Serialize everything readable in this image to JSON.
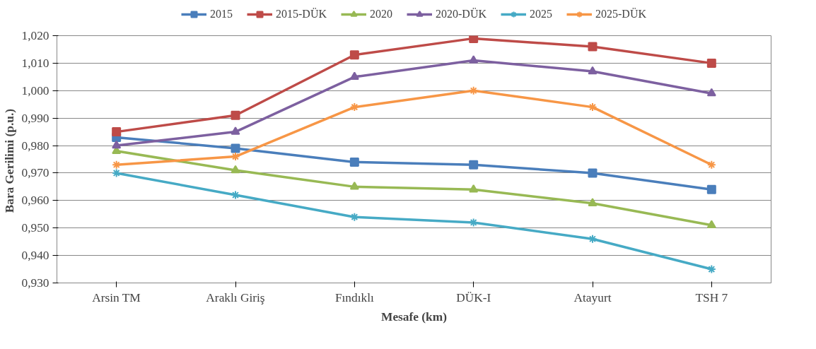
{
  "chart_data": {
    "type": "line",
    "xlabel": "Mesafe (km)",
    "ylabel": "Bara  Gerilimi (p.u.)",
    "categories": [
      "Arsin TM",
      "Araklı Giriş",
      "Fındıklı",
      "DÜK-I",
      "Atayurt",
      "TSH 7"
    ],
    "ylim": [
      0.93,
      1.02
    ],
    "yticks": [
      {
        "value": 0.93,
        "label": "0,930"
      },
      {
        "value": 0.94,
        "label": "0,940"
      },
      {
        "value": 0.95,
        "label": "0,950"
      },
      {
        "value": 0.96,
        "label": "0,960"
      },
      {
        "value": 0.97,
        "label": "0,970"
      },
      {
        "value": 0.98,
        "label": "0,980"
      },
      {
        "value": 0.99,
        "label": "0,990"
      },
      {
        "value": 1.0,
        "label": "1,000"
      },
      {
        "value": 1.01,
        "label": "1,010"
      },
      {
        "value": 1.02,
        "label": "1,020"
      }
    ],
    "grid": "y",
    "legend": "top",
    "line_style": "solid",
    "series": [
      {
        "name": "2015",
        "color": "#4a7ebb",
        "marker": "square",
        "values": [
          0.983,
          0.979,
          0.974,
          0.973,
          0.97,
          0.964
        ]
      },
      {
        "name": "2015-DÜK",
        "color": "#be4b48",
        "marker": "square",
        "values": [
          0.985,
          0.991,
          1.013,
          1.019,
          1.016,
          1.01
        ]
      },
      {
        "name": "2020",
        "color": "#98b954",
        "marker": "triangle",
        "values": [
          0.978,
          0.971,
          0.965,
          0.964,
          0.959,
          0.951
        ]
      },
      {
        "name": "2020-DÜK",
        "color": "#7d60a0",
        "marker": "triangle",
        "values": [
          0.98,
          0.985,
          1.005,
          1.011,
          1.007,
          0.999
        ]
      },
      {
        "name": "2025",
        "color": "#46aac5",
        "marker": "cross",
        "values": [
          0.97,
          0.962,
          0.954,
          0.952,
          0.946,
          0.935
        ]
      },
      {
        "name": "2025-DÜK",
        "color": "#f79646",
        "marker": "cross",
        "values": [
          0.973,
          0.976,
          0.994,
          1.0,
          0.994,
          0.973
        ]
      }
    ]
  }
}
